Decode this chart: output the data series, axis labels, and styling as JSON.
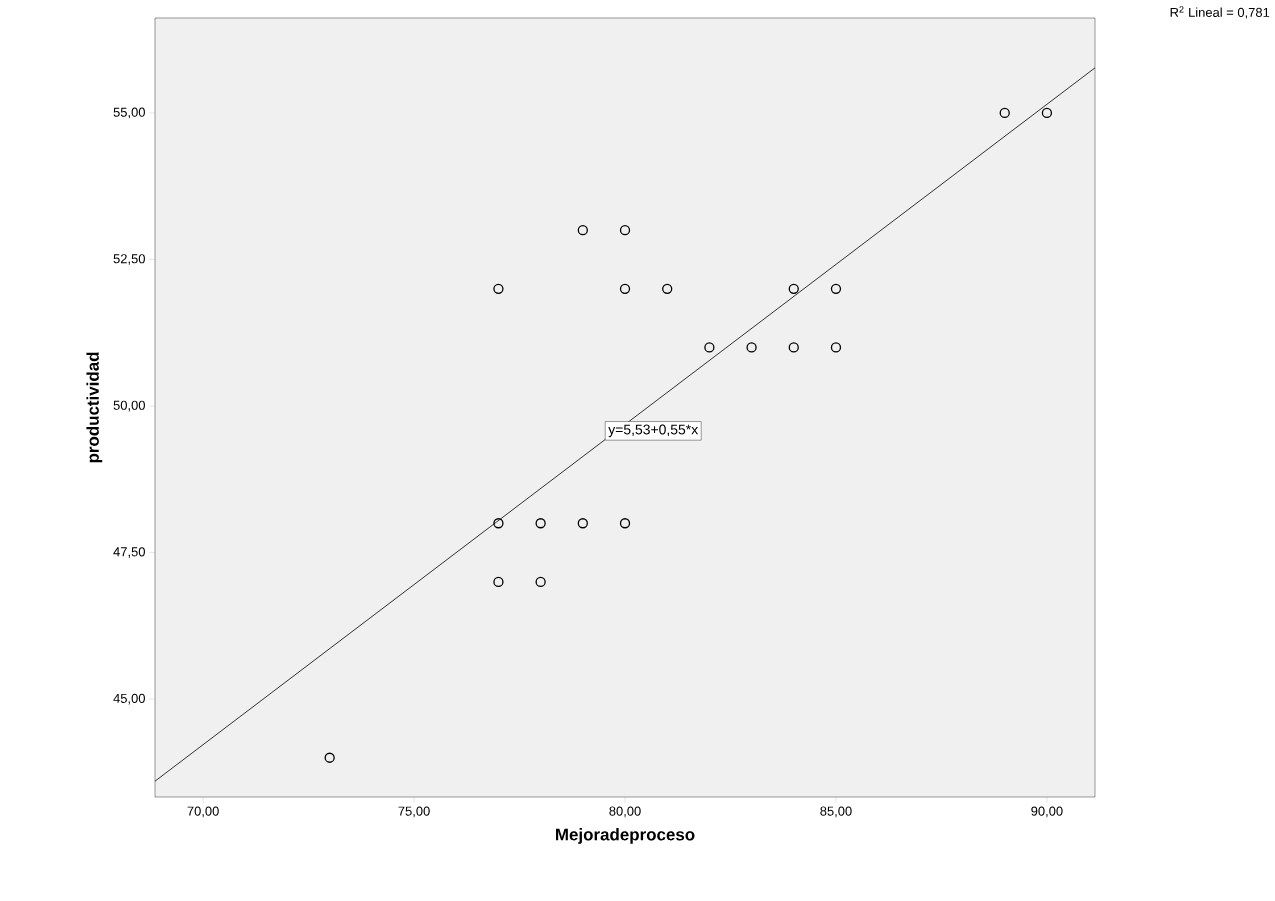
{
  "chart_data": {
    "type": "scatter",
    "xlabel": "Mejoradeproceso",
    "ylabel": "productividad",
    "xlim": [
      68.86,
      91.14
    ],
    "ylim": [
      43.33,
      56.62
    ],
    "xticks": [
      {
        "value": 70,
        "label": "70,00"
      },
      {
        "value": 75,
        "label": "75,00"
      },
      {
        "value": 80,
        "label": "80,00"
      },
      {
        "value": 85,
        "label": "85,00"
      },
      {
        "value": 90,
        "label": "90,00"
      }
    ],
    "yticks": [
      {
        "value": 45,
        "label": "45,00"
      },
      {
        "value": 47.5,
        "label": "47,50"
      },
      {
        "value": 50,
        "label": "50,00"
      },
      {
        "value": 52.5,
        "label": "52,50"
      },
      {
        "value": 55,
        "label": "55,00"
      }
    ],
    "grid": false,
    "series": [
      {
        "marker": "circle",
        "color": "#000000",
        "x": [
          73,
          77,
          77,
          77,
          78,
          78,
          79,
          79,
          80,
          80,
          80,
          81,
          82,
          83,
          84,
          84,
          85,
          85,
          89,
          90
        ],
        "values": [
          44,
          52,
          48,
          47,
          48,
          47,
          53,
          48,
          53,
          52,
          48,
          52,
          51,
          51,
          52,
          51,
          52,
          51,
          55,
          55
        ]
      },
      {
        "type": "line",
        "color": "#000000",
        "x": [
          68.86,
          91.14
        ],
        "values": [
          43.6,
          55.77
        ]
      }
    ],
    "annotations": [
      "y=5,53+0,55*x",
      "R$^{2}$ Lineal = 0,781"
    ]
  }
}
